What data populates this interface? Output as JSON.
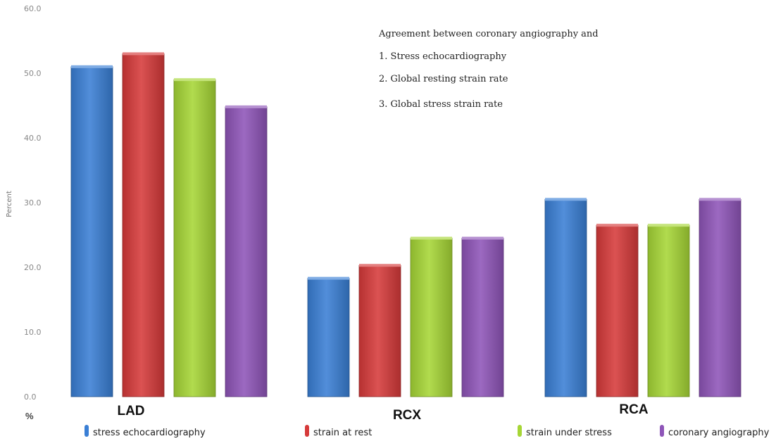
{
  "chart_data": {
    "type": "bar",
    "categories": [
      "LAD",
      "RCX",
      "RCA"
    ],
    "series": [
      {
        "name": "stress echocardiography",
        "color": "#3a7fd5",
        "values": [
          51.0,
          18.3,
          30.5
        ]
      },
      {
        "name": "strain at rest",
        "color": "#d63a3a",
        "values": [
          53.0,
          20.3,
          26.5
        ]
      },
      {
        "name": "strain under stress",
        "color": "#a6d636",
        "values": [
          49.0,
          24.5,
          26.5
        ]
      },
      {
        "name": "coronary angiography",
        "color": "#8e55b8",
        "values": [
          44.8,
          24.5,
          30.5
        ]
      }
    ],
    "ylabel": "Percent",
    "y_unit_label": "%",
    "ylim": [
      0,
      60
    ],
    "yticks": [
      "0.0",
      "10.0",
      "20.0",
      "30.0",
      "40.0",
      "50.0",
      "60.0"
    ],
    "grid": false,
    "legend_position": "bottom",
    "annotations": [
      "Agreement between coronary angiography and",
      "1. Stress echocardiography",
      "2. Global resting strain rate",
      "3. Global stress strain rate"
    ]
  }
}
